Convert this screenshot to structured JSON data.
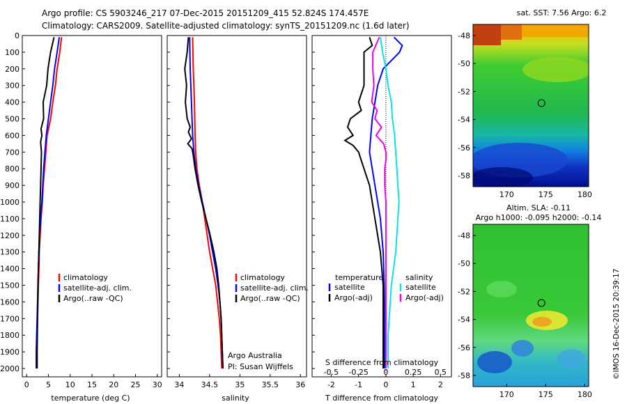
{
  "header": {
    "line1": "Argo profile: CS 5903246_217 07-Dec-2015 20151209_415 52.824S 174.457E",
    "line2": "Climatology: CARS2009. Satellite-adjusted climatology: synTS_20151209.nc (1.6d later)"
  },
  "footer_note": "©IMOS 16-Dec-2015 20:39:17",
  "colors": {
    "climatology": "#ff0000",
    "satellite": "#0000ff",
    "argo": "#000000",
    "salinity_satellite": "#00e5ee",
    "salinity_argo": "#ee00ee"
  },
  "chart_data": [
    {
      "type": "line",
      "id": "temperature",
      "xlabel": "temperature (deg C)",
      "ylabel": "",
      "xlim": [
        -1,
        31
      ],
      "ylim": [
        2050,
        0
      ],
      "xticks": [
        "0",
        "5",
        "10",
        "15",
        "20",
        "25",
        "30"
      ],
      "yticks": [
        "0",
        "100",
        "200",
        "300",
        "400",
        "500",
        "600",
        "700",
        "800",
        "900",
        "1000",
        "1100",
        "1200",
        "1300",
        "1400",
        "1500",
        "1600",
        "1700",
        "1800",
        "1900",
        "2000"
      ],
      "legend": [
        "climatology",
        "satellite-adj. clim.",
        "Argo(..raw -QC)"
      ],
      "series": [
        {
          "name": "climatology",
          "color": "#ff0000",
          "points": [
            [
              8.0,
              10
            ],
            [
              7.6,
              100
            ],
            [
              7.0,
              200
            ],
            [
              6.6,
              300
            ],
            [
              6.0,
              400
            ],
            [
              5.5,
              500
            ],
            [
              4.7,
              600
            ],
            [
              4.4,
              700
            ],
            [
              4.1,
              800
            ],
            [
              3.8,
              900
            ],
            [
              3.6,
              1000
            ],
            [
              3.3,
              1100
            ],
            [
              3.1,
              1200
            ],
            [
              2.9,
              1300
            ],
            [
              2.8,
              1400
            ],
            [
              2.7,
              1500
            ],
            [
              2.6,
              1600
            ],
            [
              2.5,
              1700
            ],
            [
              2.4,
              1800
            ],
            [
              2.3,
              1900
            ],
            [
              2.3,
              2000
            ]
          ]
        },
        {
          "name": "satellite-adj. clim.",
          "color": "#0000ff",
          "points": [
            [
              7.5,
              10
            ],
            [
              7.0,
              100
            ],
            [
              6.4,
              200
            ],
            [
              6.0,
              300
            ],
            [
              5.5,
              400
            ],
            [
              5.0,
              500
            ],
            [
              4.5,
              600
            ],
            [
              4.2,
              700
            ],
            [
              3.9,
              800
            ],
            [
              3.7,
              900
            ],
            [
              3.5,
              1000
            ],
            [
              3.2,
              1100
            ],
            [
              3.0,
              1200
            ],
            [
              2.8,
              1300
            ],
            [
              2.7,
              1400
            ],
            [
              2.6,
              1500
            ],
            [
              2.5,
              1600
            ],
            [
              2.4,
              1700
            ],
            [
              2.3,
              1800
            ],
            [
              2.2,
              1900
            ],
            [
              2.2,
              2000
            ]
          ]
        },
        {
          "name": "Argo(..raw -QC)",
          "color": "#000000",
          "points": [
            [
              6.3,
              10
            ],
            [
              5.5,
              100
            ],
            [
              4.9,
              200
            ],
            [
              4.6,
              300
            ],
            [
              3.8,
              400
            ],
            [
              3.9,
              500
            ],
            [
              3.3,
              560
            ],
            [
              3.5,
              600
            ],
            [
              3.2,
              640
            ],
            [
              3.4,
              700
            ],
            [
              3.3,
              800
            ],
            [
              3.2,
              900
            ],
            [
              3.1,
              1000
            ],
            [
              3.0,
              1100
            ],
            [
              2.9,
              1200
            ],
            [
              2.8,
              1300
            ],
            [
              2.7,
              1400
            ],
            [
              2.6,
              1500
            ],
            [
              2.55,
              1600
            ],
            [
              2.5,
              1700
            ],
            [
              2.45,
              1800
            ],
            [
              2.4,
              1900
            ],
            [
              2.4,
              2000
            ]
          ]
        }
      ]
    },
    {
      "type": "line",
      "id": "salinity",
      "xlabel": "salinity",
      "ylabel": "",
      "xlim": [
        33.8,
        36.1
      ],
      "ylim": [
        2050,
        0
      ],
      "xticks": [
        "34",
        "34.5",
        "35",
        "35.5",
        "36"
      ],
      "legend": [
        "climatology",
        "satellite-adj. clim.",
        "Argo(..raw -QC)"
      ],
      "annotations": [
        "Argo Australia",
        "PI: Susan Wijffels"
      ],
      "series": [
        {
          "name": "climatology",
          "color": "#ff0000",
          "points": [
            [
              34.22,
              10
            ],
            [
              34.23,
              200
            ],
            [
              34.25,
              400
            ],
            [
              34.26,
              600
            ],
            [
              34.27,
              700
            ],
            [
              34.29,
              800
            ],
            [
              34.33,
              900
            ],
            [
              34.38,
              1000
            ],
            [
              34.42,
              1100
            ],
            [
              34.46,
              1200
            ],
            [
              34.5,
              1300
            ],
            [
              34.55,
              1400
            ],
            [
              34.6,
              1500
            ],
            [
              34.63,
              1600
            ],
            [
              34.66,
              1700
            ],
            [
              34.68,
              1800
            ],
            [
              34.69,
              1900
            ],
            [
              34.7,
              2000
            ]
          ]
        },
        {
          "name": "satellite-adj. clim.",
          "color": "#0000ff",
          "points": [
            [
              34.17,
              10
            ],
            [
              34.18,
              200
            ],
            [
              34.2,
              400
            ],
            [
              34.22,
              600
            ],
            [
              34.24,
              700
            ],
            [
              34.27,
              800
            ],
            [
              34.32,
              900
            ],
            [
              34.38,
              1000
            ],
            [
              34.44,
              1100
            ],
            [
              34.5,
              1200
            ],
            [
              34.55,
              1300
            ],
            [
              34.6,
              1400
            ],
            [
              34.64,
              1500
            ],
            [
              34.67,
              1600
            ],
            [
              34.69,
              1700
            ],
            [
              34.7,
              1800
            ],
            [
              34.71,
              1900
            ],
            [
              34.72,
              2000
            ]
          ]
        },
        {
          "name": "Argo(..raw -QC)",
          "color": "#000000",
          "points": [
            [
              34.15,
              10
            ],
            [
              34.13,
              100
            ],
            [
              34.09,
              200
            ],
            [
              34.12,
              300
            ],
            [
              34.1,
              400
            ],
            [
              34.13,
              500
            ],
            [
              34.18,
              550
            ],
            [
              34.15,
              580
            ],
            [
              34.2,
              620
            ],
            [
              34.14,
              650
            ],
            [
              34.21,
              680
            ],
            [
              34.23,
              720
            ],
            [
              34.26,
              800
            ],
            [
              34.31,
              900
            ],
            [
              34.37,
              1000
            ],
            [
              34.44,
              1100
            ],
            [
              34.51,
              1200
            ],
            [
              34.57,
              1300
            ],
            [
              34.62,
              1400
            ],
            [
              34.65,
              1500
            ],
            [
              34.67,
              1600
            ],
            [
              34.69,
              1700
            ],
            [
              34.7,
              1800
            ],
            [
              34.71,
              1900
            ],
            [
              34.72,
              2000
            ]
          ]
        }
      ]
    },
    {
      "type": "line",
      "id": "difference",
      "xlabel": "T difference from climatology",
      "xlabel_top": "S difference from climatology",
      "xlim": [
        -2.7,
        2.4
      ],
      "ylim": [
        2050,
        0
      ],
      "xticks_T": [
        "-2",
        "-1",
        "0",
        "1",
        "2"
      ],
      "xticks_S": [
        "-0.5",
        "-0.25",
        "0",
        "0.25",
        "0.5"
      ],
      "legend_temperature_title": "temperature",
      "legend_salinity_title": "salinity",
      "legend_temperature": [
        "satellite",
        "Argo(-adj)"
      ],
      "legend_salinity": [
        "satellite",
        "Argo(-adj)"
      ],
      "series": [
        {
          "name": "T satellite",
          "color": "#0000ff",
          "points": [
            [
              0.3,
              10
            ],
            [
              0.6,
              60
            ],
            [
              0.5,
              100
            ],
            [
              0.2,
              150
            ],
            [
              -0.1,
              200
            ],
            [
              -0.3,
              300
            ],
            [
              -0.4,
              400
            ],
            [
              -0.5,
              500
            ],
            [
              -0.55,
              600
            ],
            [
              -0.6,
              700
            ],
            [
              -0.5,
              800
            ],
            [
              -0.4,
              900
            ],
            [
              -0.3,
              1000
            ],
            [
              -0.2,
              1100
            ],
            [
              -0.15,
              1200
            ],
            [
              -0.1,
              1300
            ],
            [
              -0.08,
              1400
            ],
            [
              -0.06,
              1500
            ],
            [
              -0.05,
              1600
            ],
            [
              -0.05,
              1700
            ],
            [
              -0.05,
              1800
            ],
            [
              -0.05,
              1900
            ],
            [
              -0.05,
              2000
            ]
          ]
        },
        {
          "name": "T Argo(-adj)",
          "color": "#000000",
          "points": [
            [
              -0.6,
              10
            ],
            [
              -0.5,
              60
            ],
            [
              -0.8,
              100
            ],
            [
              -0.8,
              200
            ],
            [
              -0.8,
              300
            ],
            [
              -1.0,
              400
            ],
            [
              -0.9,
              450
            ],
            [
              -1.3,
              500
            ],
            [
              -1.4,
              550
            ],
            [
              -1.2,
              600
            ],
            [
              -1.5,
              630
            ],
            [
              -1.2,
              660
            ],
            [
              -1.0,
              700
            ],
            [
              -0.9,
              750
            ],
            [
              -0.8,
              800
            ],
            [
              -0.6,
              900
            ],
            [
              -0.5,
              1000
            ],
            [
              -0.4,
              1100
            ],
            [
              -0.3,
              1200
            ],
            [
              -0.2,
              1300
            ],
            [
              -0.15,
              1400
            ],
            [
              -0.1,
              1500
            ],
            [
              -0.1,
              1600
            ],
            [
              -0.1,
              1700
            ],
            [
              -0.1,
              1800
            ],
            [
              -0.1,
              1900
            ],
            [
              -0.1,
              2000
            ]
          ]
        },
        {
          "name": "S satellite",
          "color": "#00e5ee",
          "points": [
            [
              -0.05,
              10
            ],
            [
              -0.03,
              100
            ],
            [
              0.0,
              200
            ],
            [
              0.02,
              300
            ],
            [
              0.05,
              400
            ],
            [
              0.06,
              500
            ],
            [
              0.08,
              600
            ],
            [
              0.09,
              700
            ],
            [
              0.1,
              800
            ],
            [
              0.11,
              900
            ],
            [
              0.12,
              1000
            ],
            [
              0.11,
              1100
            ],
            [
              0.1,
              1200
            ],
            [
              0.09,
              1300
            ],
            [
              0.07,
              1400
            ],
            [
              0.05,
              1500
            ],
            [
              0.04,
              1600
            ],
            [
              0.03,
              1700
            ],
            [
              0.02,
              1800
            ],
            [
              0.02,
              1900
            ],
            [
              0.02,
              2000
            ]
          ]
        },
        {
          "name": "S Argo(-adj)",
          "color": "#ee00ee",
          "points": [
            [
              -0.06,
              10
            ],
            [
              -0.12,
              100
            ],
            [
              -0.12,
              200
            ],
            [
              -0.11,
              300
            ],
            [
              -0.13,
              400
            ],
            [
              -0.08,
              450
            ],
            [
              -0.1,
              500
            ],
            [
              -0.04,
              550
            ],
            [
              -0.09,
              600
            ],
            [
              -0.02,
              650
            ],
            [
              0.0,
              700
            ],
            [
              0.0,
              750
            ],
            [
              -0.01,
              800
            ],
            [
              -0.01,
              900
            ],
            [
              0.0,
              1000
            ],
            [
              0.0,
              1200
            ],
            [
              0.0,
              1400
            ],
            [
              0.0,
              1600
            ],
            [
              0.0,
              1800
            ],
            [
              0.0,
              2000
            ]
          ]
        }
      ]
    },
    {
      "type": "heatmap",
      "id": "sst-map",
      "title": "sat. SST: 7.56 Argo: 6.2",
      "xticks": [
        "170",
        "175",
        "180"
      ],
      "yticks": [
        "-48",
        "-50",
        "-52",
        "-54",
        "-56",
        "-58"
      ],
      "xlim": [
        165.7,
        180.5
      ],
      "ylim": [
        -58.8,
        -47.2
      ],
      "argo_position": [
        174.457,
        -52.824
      ]
    },
    {
      "type": "heatmap",
      "id": "sla-map",
      "title_line1": "Altim. SLA: -0.11",
      "title_line2": "Argo h1000: -0.095 h2000: -0.14",
      "xticks": [
        "170",
        "175",
        "180"
      ],
      "yticks": [
        "-48",
        "-50",
        "-52",
        "-54",
        "-56",
        "-58"
      ],
      "xlim": [
        165.7,
        180.5
      ],
      "ylim": [
        -58.8,
        -47.2
      ],
      "argo_position": [
        174.457,
        -52.824
      ]
    }
  ]
}
